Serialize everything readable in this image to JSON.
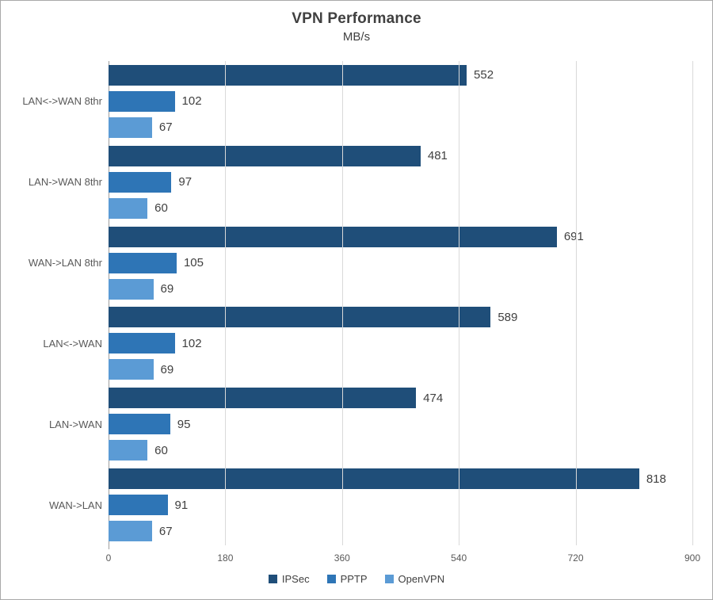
{
  "colors": {
    "background": "#FFFFFF",
    "border": "#A9A9A9",
    "grid": "#D9D9D9",
    "axis": "#9E9E9E",
    "text": "#404040",
    "text-secondary": "#595959"
  },
  "chart_data": {
    "type": "bar",
    "orientation": "horizontal",
    "title": "VPN Performance",
    "subtitle": "MB/s",
    "categories": [
      "LAN<->WAN 8thr",
      "LAN->WAN 8thr",
      "WAN->LAN 8thr",
      "LAN<->WAN",
      "LAN->WAN",
      "WAN->LAN"
    ],
    "series": [
      {
        "name": "IPSec",
        "color": "#1F4E79",
        "values": [
          552,
          481,
          691,
          589,
          474,
          818
        ]
      },
      {
        "name": "PPTP",
        "color": "#2E75B6",
        "values": [
          102,
          97,
          105,
          102,
          95,
          91
        ]
      },
      {
        "name": "OpenVPN",
        "color": "#5B9BD5",
        "values": [
          67,
          60,
          69,
          69,
          60,
          67
        ]
      }
    ],
    "xlabel": "",
    "ylabel": "",
    "xlim": [
      0,
      900
    ],
    "x_ticks": [
      0,
      180,
      360,
      540,
      720,
      900
    ],
    "grid": "vertical",
    "data_labels": true,
    "legend_position": "bottom"
  }
}
